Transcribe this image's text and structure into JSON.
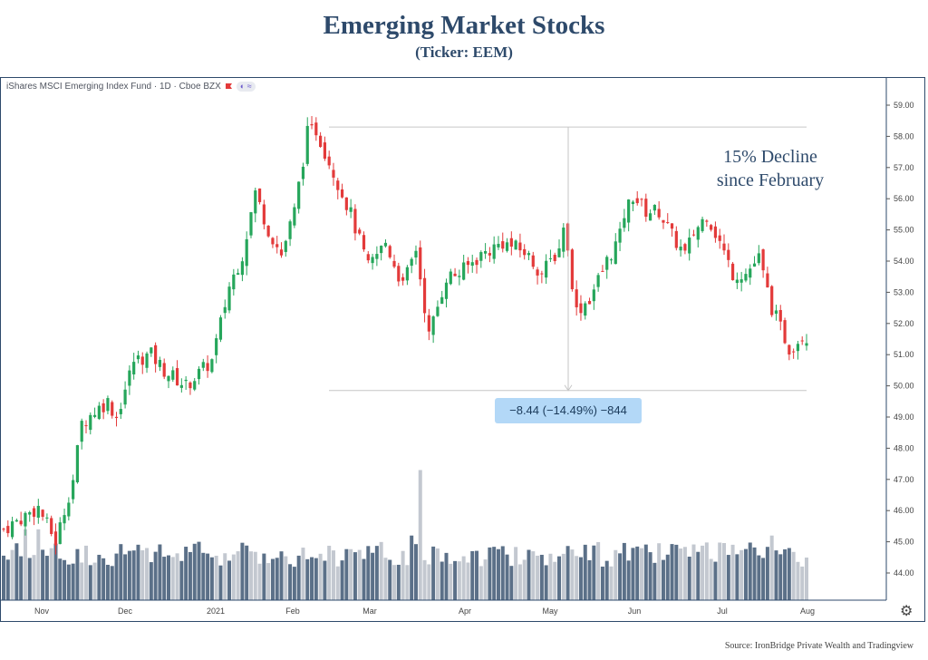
{
  "page": {
    "title": "Emerging Market Stocks",
    "subtitle": "(Ticker: EEM)",
    "source": "Source: IronBridge Private Wealth and Tradingview"
  },
  "chart_header": {
    "symbol_label": "iShares MSCI Emerging Index Fund · 1D · Cboe BZX",
    "icon_flag": "red-flag-icon",
    "icon_pill": "indicator-pill-icon"
  },
  "annotation": {
    "line1": "15% Decline",
    "line2": "since February"
  },
  "measure_label": "−8.44 (−14.49%) −844",
  "settings_icon": "gear-icon",
  "colors": {
    "up": "#26a65b",
    "down": "#e33a3a",
    "vol_dark": "#5b7088",
    "vol_light": "#c3c8d0",
    "frame": "#2e4a6b"
  },
  "chart_data": {
    "type": "candlestick",
    "ylim": [
      43.1,
      59.5
    ],
    "yticks": [
      44.0,
      45.0,
      46.0,
      47.0,
      48.0,
      49.0,
      50.0,
      51.0,
      52.0,
      53.0,
      54.0,
      55.0,
      56.0,
      57.0,
      58.0,
      59.0
    ],
    "ytick_labels": [
      "44.00",
      "45.00",
      "46.00",
      "47.00",
      "48.00",
      "49.00",
      "50.00",
      "51.00",
      "52.00",
      "53.00",
      "54.00",
      "55.00",
      "56.00",
      "57.00",
      "58.00",
      "59.00"
    ],
    "xtick_labels": [
      "Nov",
      "Dec",
      "2021",
      "Feb",
      "Mar",
      "Apr",
      "May",
      "Jun",
      "Jul",
      "Aug"
    ],
    "measure": {
      "high": 58.3,
      "low": 49.85
    },
    "anchors": [
      [
        0,
        45.4
      ],
      [
        8,
        46.1
      ],
      [
        12,
        45.0
      ],
      [
        16,
        47.0
      ],
      [
        18,
        48.8
      ],
      [
        21,
        49.2
      ],
      [
        24,
        49.5
      ],
      [
        26,
        49.0
      ],
      [
        30,
        50.8
      ],
      [
        34,
        51.0
      ],
      [
        37,
        50.5
      ],
      [
        42,
        50.0
      ],
      [
        48,
        50.8
      ],
      [
        52,
        53.2
      ],
      [
        55,
        54.2
      ],
      [
        58,
        56.2
      ],
      [
        61,
        55.0
      ],
      [
        64,
        54.2
      ],
      [
        67,
        55.6
      ],
      [
        70,
        58.1
      ],
      [
        72,
        58.2
      ],
      [
        75,
        57.2
      ],
      [
        80,
        55.5
      ],
      [
        84,
        53.8
      ],
      [
        88,
        54.6
      ],
      [
        92,
        53.2
      ],
      [
        95,
        54.4
      ],
      [
        98,
        51.6
      ],
      [
        102,
        53.5
      ],
      [
        105,
        53.6
      ],
      [
        110,
        54.2
      ],
      [
        115,
        54.6
      ],
      [
        120,
        54.3
      ],
      [
        124,
        53.6
      ],
      [
        128,
        54.4
      ],
      [
        129,
        55.2
      ],
      [
        132,
        52.4
      ],
      [
        135,
        52.8
      ],
      [
        139,
        54.0
      ],
      [
        142,
        54.8
      ],
      [
        143,
        55.5
      ],
      [
        145,
        56.1
      ],
      [
        148,
        55.6
      ],
      [
        151,
        55.6
      ],
      [
        154,
        54.8
      ],
      [
        157,
        54.2
      ],
      [
        159,
        54.9
      ],
      [
        162,
        55.5
      ],
      [
        165,
        54.6
      ],
      [
        168,
        53.6
      ],
      [
        171,
        53.6
      ],
      [
        174,
        54.1
      ],
      [
        177,
        52.5
      ],
      [
        181,
        51.2
      ],
      [
        184,
        51.6
      ]
    ],
    "volume_spikes": {
      "96": 47.3,
      "94": 45.2,
      "108": 44.7,
      "177": 45.2,
      "179": 44.6,
      "181": 44.8,
      "45": 45.0,
      "33": 44.8,
      "5": 45.4,
      "8": 45.4
    }
  }
}
